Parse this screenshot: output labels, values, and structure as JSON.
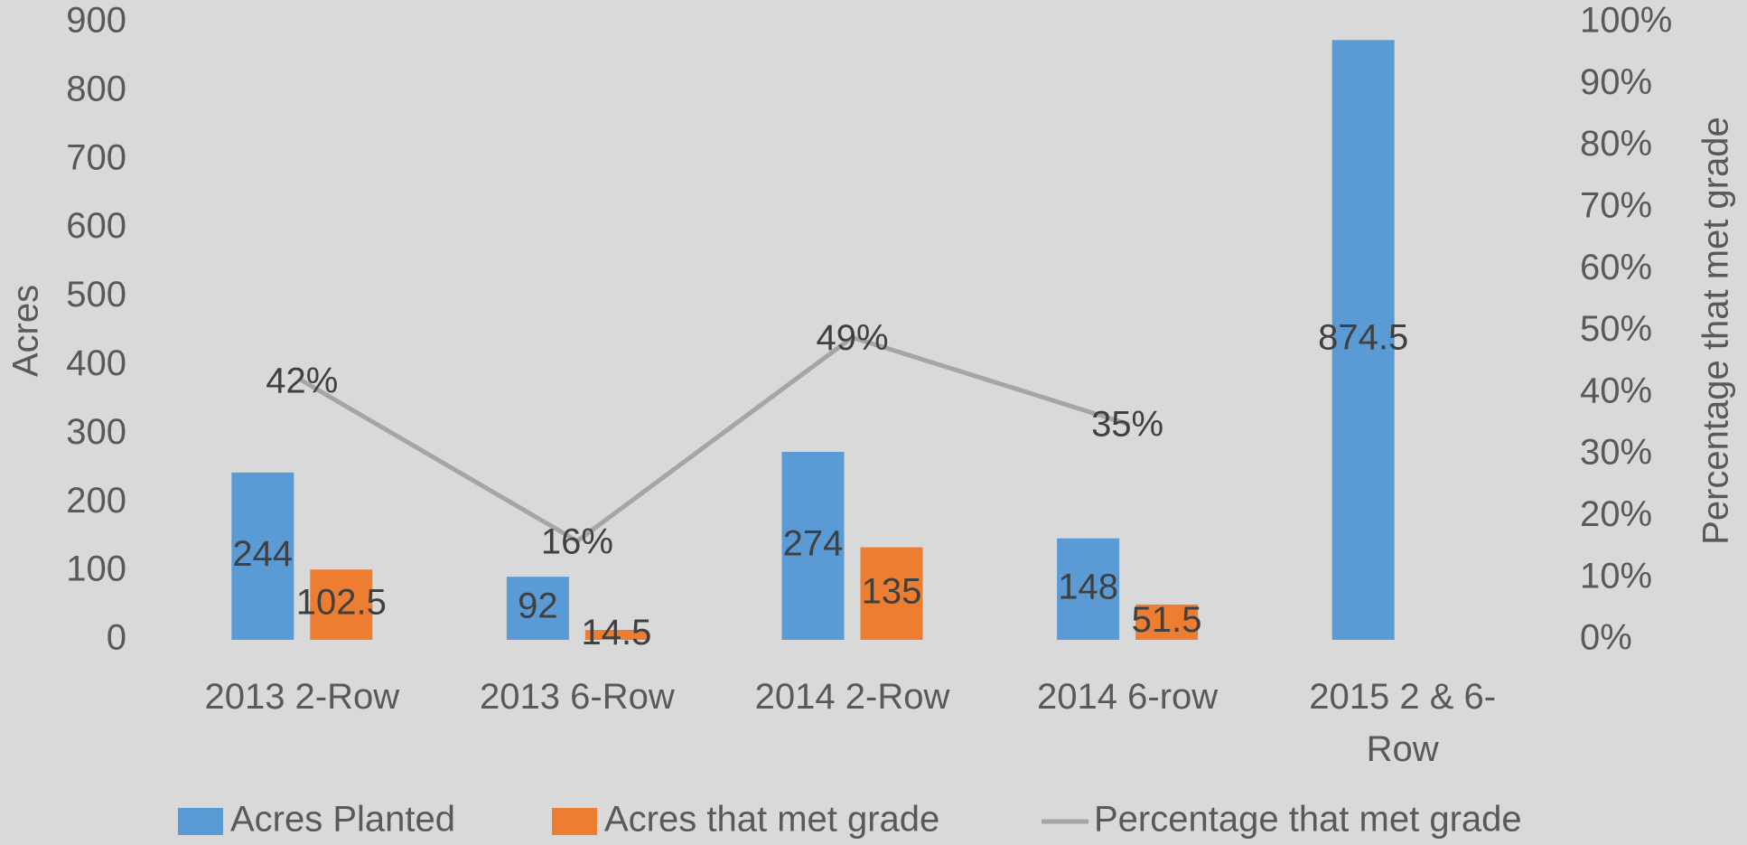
{
  "chart_data": {
    "type": "bar",
    "categories": [
      "2013 2-Row",
      "2013 6-Row",
      "2014 2-Row",
      "2014 6-row",
      "2015 2 & 6-Row"
    ],
    "series": [
      {
        "name": "Acres Planted",
        "color": "#5b9bd5",
        "type": "bar",
        "values": [
          244,
          92,
          274,
          148,
          874.5
        ]
      },
      {
        "name": "Acres that met grade",
        "color": "#ed7d31",
        "type": "bar",
        "values": [
          102.5,
          14.5,
          135,
          51.5,
          null
        ]
      },
      {
        "name": "Percentage that met grade",
        "color": "#a5a5a5",
        "type": "line",
        "axis": "y2",
        "values": [
          42,
          16,
          49,
          35,
          null
        ],
        "value_labels": [
          "42%",
          "16%",
          "49%",
          "35%",
          null
        ]
      }
    ],
    "y_label": "Acres",
    "y2_label": "Percentage that met grade",
    "ylim": [
      0,
      900
    ],
    "yticks": [
      0,
      100,
      200,
      300,
      400,
      500,
      600,
      700,
      800,
      900
    ],
    "y2lim": [
      0,
      100
    ],
    "y2ticks": [
      {
        "value": 0,
        "label": "0%"
      },
      {
        "value": 10,
        "label": "10%"
      },
      {
        "value": 20,
        "label": "20%"
      },
      {
        "value": 30,
        "label": "30%"
      },
      {
        "value": 40,
        "label": "40%"
      },
      {
        "value": 50,
        "label": "50%"
      },
      {
        "value": 60,
        "label": "60%"
      },
      {
        "value": 70,
        "label": "70%"
      },
      {
        "value": 80,
        "label": "80%"
      },
      {
        "value": 90,
        "label": "90%"
      },
      {
        "value": 100,
        "label": "100%"
      }
    ],
    "grid": false,
    "legend": "bottom"
  }
}
